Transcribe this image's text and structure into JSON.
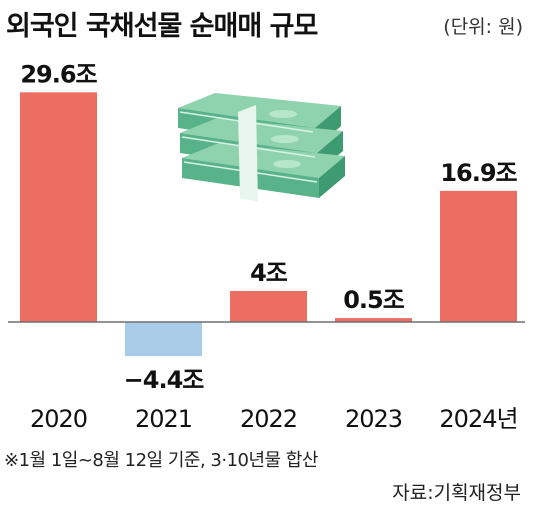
{
  "header": {
    "title": "외국인 국채선물 순매매 규모",
    "unit": "(단위: 원)"
  },
  "footer": {
    "note": "※1월 1일~8월 12일 기준, 3·10년물 합산",
    "source": "자료:기획재정부"
  },
  "colors": {
    "positive": "#ec6e63",
    "negative": "#a9cce9",
    "baseline": "#6e6e6e",
    "illustration_money": "#58b38a"
  },
  "illustration": {
    "icon": "money-stack-icon"
  },
  "chart_data": {
    "type": "bar",
    "categories": [
      "2020",
      "2021",
      "2022",
      "2023",
      "2024년"
    ],
    "values": [
      29.6,
      -4.4,
      4,
      0.5,
      16.9
    ],
    "value_labels": [
      "29.6조",
      "−4.4조",
      "4조",
      "0.5조",
      "16.9조"
    ],
    "title": "외국인 국채선물 순매매 규모",
    "unit": "(단위: 원)",
    "ylim": [
      -4.4,
      29.6
    ],
    "grid": false
  }
}
